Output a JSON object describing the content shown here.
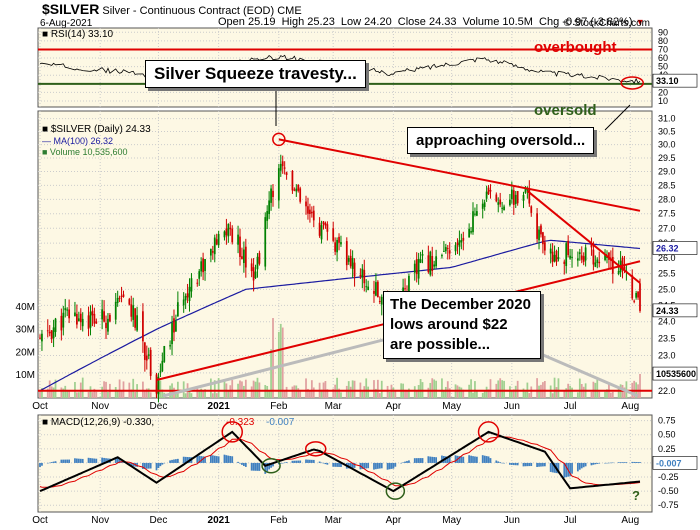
{
  "header": {
    "symbol": "$SILVER",
    "description": "Silver - Continuous Contract (EOD)",
    "exchange": "CME",
    "date": "6-Aug-2021",
    "ohlc_line": "Open 25.19  High 25.23  Low 24.20  Close 24.33  Volume 10.5M  Chg -0.97 (-3.82%)",
    "chg_arrow": "▼",
    "watermark": "© StockCharts.com"
  },
  "rsi_panel": {
    "label": "RSI(14) 33.10",
    "current": "33.10",
    "ticks": [
      "90",
      "80",
      "70",
      "60",
      "50",
      "40",
      "30",
      "20",
      "10"
    ],
    "overbought_label": "overbought",
    "oversold_label": "oversold",
    "overbought_level": 70,
    "oversold_level": 30
  },
  "price_panel": {
    "legend_symbol": "$SILVER (Daily) 24.33",
    "legend_ma": "MA(100) 26.32",
    "legend_volume": "Volume 10,535,600",
    "price_ticks": [
      "31.0",
      "30.5",
      "30.0",
      "29.5",
      "29.0",
      "28.5",
      "28.0",
      "27.5",
      "27.0",
      "26.5",
      "26.0",
      "25.5",
      "25.0",
      "24.5",
      "24.0",
      "23.5",
      "23.0",
      "22.5",
      "22.0"
    ],
    "last_price": "24.33",
    "ma_value": "26.32",
    "volume_value": "10535600",
    "volume_ticks": [
      "40M",
      "30M",
      "20M",
      "10M"
    ]
  },
  "x_axis": {
    "labels": [
      "Oct",
      "Nov",
      "Dec",
      "2021",
      "Feb",
      "Mar",
      "Apr",
      "May",
      "Jun",
      "Jul",
      "Aug"
    ]
  },
  "macd_panel": {
    "label_prefix": "MACD(12,26,9) -0.330,",
    "signal_value": "-0.323",
    "hist_value": "-0.007",
    "ticks": [
      "0.75",
      "0.50",
      "0.25",
      "0.00",
      "-0.25",
      "-0.50",
      "-0.75"
    ],
    "current": "-0.007",
    "question_mark": "?"
  },
  "annotations": {
    "silver_squeeze": "Silver Squeeze travesty...",
    "approaching_oversold": "approaching oversold...",
    "december_lows": "The December 2020 lows around $22 are possible..."
  },
  "colors": {
    "up_candle": "#008000",
    "down_candle": "#d00000",
    "ma_line": "#1a1aa0",
    "annotation_red": "#e00000",
    "volume_up": "#a0d090",
    "volume_down": "#e0a0a0",
    "histogram": "#4080c0",
    "background": "#fdf8e4"
  },
  "chart_data": {
    "type": "candlestick",
    "title": "$SILVER Silver - Continuous Contract (EOD) CME",
    "x_range": [
      "2020-10-01",
      "2021-08-06"
    ],
    "y_range": [
      21.8,
      31.3
    ],
    "y_axis_scale": "log",
    "last_bar": {
      "date": "2021-08-06",
      "open": 25.19,
      "high": 25.23,
      "low": 24.2,
      "close": 24.33,
      "volume": 10535600
    },
    "close_approx": [
      {
        "date": "2020-10-01",
        "close": 23.4
      },
      {
        "date": "2020-10-15",
        "close": 24.2
      },
      {
        "date": "2020-11-01",
        "close": 24.0
      },
      {
        "date": "2020-11-15",
        "close": 24.7
      },
      {
        "date": "2020-11-30",
        "close": 22.2
      },
      {
        "date": "2020-12-15",
        "close": 25.0
      },
      {
        "date": "2021-01-06",
        "close": 27.0
      },
      {
        "date": "2021-01-20",
        "close": 25.5
      },
      {
        "date": "2021-02-01",
        "close": 29.4
      },
      {
        "date": "2021-02-15",
        "close": 27.5
      },
      {
        "date": "2021-03-01",
        "close": 26.5
      },
      {
        "date": "2021-03-31",
        "close": 24.3
      },
      {
        "date": "2021-04-15",
        "close": 25.8
      },
      {
        "date": "2021-05-03",
        "close": 26.2
      },
      {
        "date": "2021-05-17",
        "close": 28.0
      },
      {
        "date": "2021-06-01",
        "close": 28.0
      },
      {
        "date": "2021-06-09",
        "close": 28.1
      },
      {
        "date": "2021-06-18",
        "close": 26.0
      },
      {
        "date": "2021-07-01",
        "close": 26.2
      },
      {
        "date": "2021-07-15",
        "close": 26.0
      },
      {
        "date": "2021-07-30",
        "close": 25.5
      },
      {
        "date": "2021-08-06",
        "close": 24.33
      }
    ],
    "ma100_approx": [
      {
        "date": "2020-10-01",
        "ma": 22.0
      },
      {
        "date": "2020-12-01",
        "ma": 23.8
      },
      {
        "date": "2021-01-15",
        "ma": 25.0
      },
      {
        "date": "2021-03-01",
        "ma": 25.3
      },
      {
        "date": "2021-05-01",
        "ma": 25.7
      },
      {
        "date": "2021-06-20",
        "ma": 26.6
      },
      {
        "date": "2021-08-06",
        "ma": 26.32
      }
    ],
    "rsi_approx": [
      {
        "date": "2020-10-01",
        "rsi": 53
      },
      {
        "date": "2020-11-30",
        "rsi": 40
      },
      {
        "date": "2021-02-01",
        "rsi": 62
      },
      {
        "date": "2021-03-31",
        "rsi": 42
      },
      {
        "date": "2021-05-17",
        "rsi": 60
      },
      {
        "date": "2021-06-18",
        "rsi": 43
      },
      {
        "date": "2021-08-06",
        "rsi": 33.1
      }
    ],
    "macd_approx": [
      {
        "date": "2020-10-01",
        "macd": -0.5
      },
      {
        "date": "2020-11-10",
        "macd": 0.1
      },
      {
        "date": "2020-11-30",
        "macd": -0.35
      },
      {
        "date": "2021-01-08",
        "macd": 0.55
      },
      {
        "date": "2021-01-25",
        "macd": -0.05
      },
      {
        "date": "2021-02-20",
        "macd": 0.25
      },
      {
        "date": "2021-04-01",
        "macd": -0.5
      },
      {
        "date": "2021-05-20",
        "macd": 0.55
      },
      {
        "date": "2021-06-18",
        "macd": 0.2
      },
      {
        "date": "2021-07-01",
        "macd": -0.45
      },
      {
        "date": "2021-08-06",
        "macd": -0.33
      }
    ],
    "trendlines": [
      {
        "from": {
          "date": "2021-02-01",
          "price": 30.2
        },
        "to": {
          "date": "2021-08-06",
          "price": 27.6
        }
      },
      {
        "from": {
          "date": "2020-11-30",
          "price": 22.3
        },
        "to": {
          "date": "2021-08-06",
          "price": 25.9
        }
      },
      {
        "from": {
          "date": "2021-06-09",
          "price": 28.3
        },
        "to": {
          "date": "2021-08-06",
          "price": 25.2
        }
      },
      {
        "y": 22.0
      }
    ]
  }
}
